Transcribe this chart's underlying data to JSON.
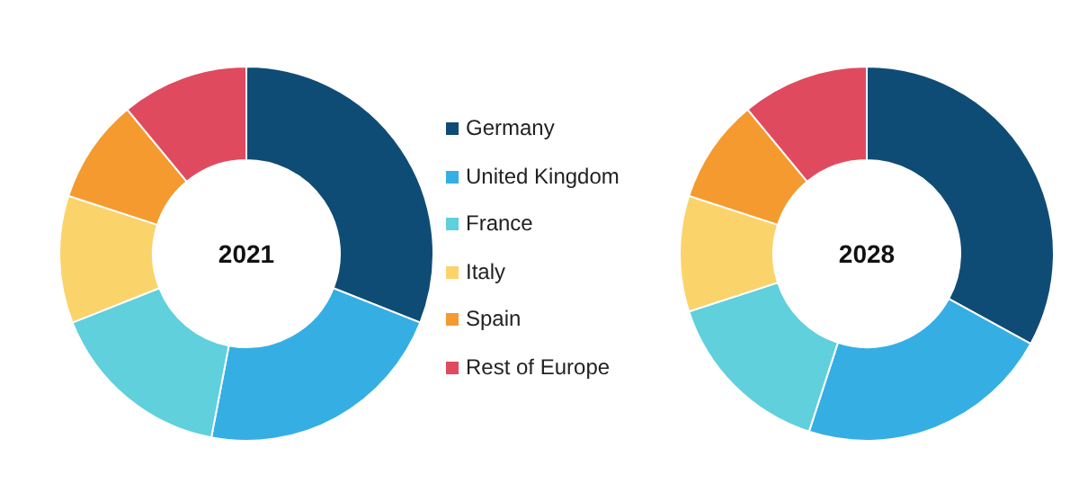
{
  "chart_data": {
    "type": "donut",
    "categories": [
      "Germany",
      "United Kingdom",
      "France",
      "Italy",
      "Spain",
      "Rest of Europe"
    ],
    "colors": [
      "#0f4c75",
      "#35aee4",
      "#5fd0dc",
      "#fbd36b",
      "#f59a2e",
      "#e04a5f"
    ],
    "legend": "right",
    "series": [
      {
        "name": "2021",
        "values": [
          31,
          22,
          16,
          11,
          9,
          11
        ]
      },
      {
        "name": "2028",
        "values": [
          33,
          22,
          15,
          10,
          9,
          11
        ]
      }
    ]
  }
}
